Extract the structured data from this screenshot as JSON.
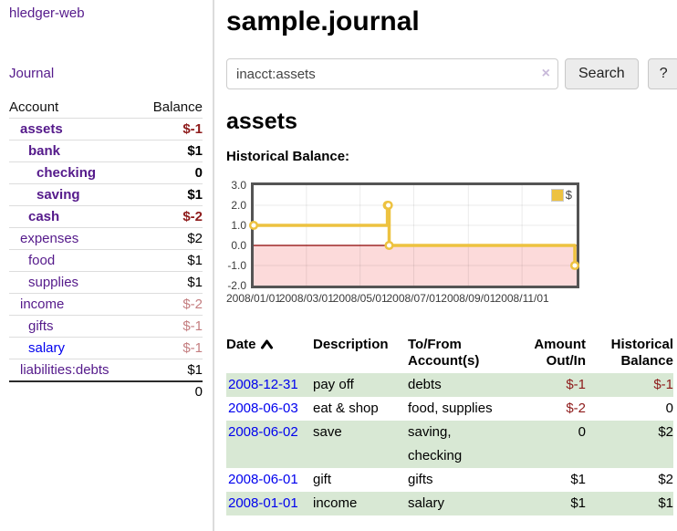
{
  "brand": "hledger-web",
  "nav": {
    "journal": "Journal"
  },
  "sidebar": {
    "col_account": "Account",
    "col_balance": "Balance",
    "rows": [
      {
        "label": "assets",
        "balance": "$-1",
        "depth": 1,
        "bold": true,
        "link": "purple",
        "bal": "neg"
      },
      {
        "label": "bank",
        "balance": "$1",
        "depth": 2,
        "bold": true,
        "link": "purple",
        "bal": "pos"
      },
      {
        "label": "checking",
        "balance": "0",
        "depth": 3,
        "bold": true,
        "link": "purple",
        "bal": "pos"
      },
      {
        "label": "saving",
        "balance": "$1",
        "depth": 3,
        "bold": true,
        "link": "purple",
        "bal": "pos"
      },
      {
        "label": "cash",
        "balance": "$-2",
        "depth": 2,
        "bold": true,
        "link": "purple",
        "bal": "neg"
      },
      {
        "label": "expenses",
        "balance": "$2",
        "depth": 1,
        "bold": false,
        "link": "purple",
        "bal": "pos"
      },
      {
        "label": "food",
        "balance": "$1",
        "depth": 2,
        "bold": false,
        "link": "purple",
        "bal": "pos"
      },
      {
        "label": "supplies",
        "balance": "$1",
        "depth": 2,
        "bold": false,
        "link": "purple",
        "bal": "pos"
      },
      {
        "label": "income",
        "balance": "$-2",
        "depth": 1,
        "bold": false,
        "link": "purple",
        "bal": "dim-neg"
      },
      {
        "label": "gifts",
        "balance": "$-1",
        "depth": 2,
        "bold": false,
        "link": "purple",
        "bal": "dim-neg"
      },
      {
        "label": "salary",
        "balance": "$-1",
        "depth": 2,
        "bold": false,
        "link": "blue",
        "bal": "dim-neg"
      },
      {
        "label": "liabilities:debts",
        "balance": "$1",
        "depth": 1,
        "bold": false,
        "link": "purple",
        "bal": "pos"
      }
    ],
    "total": "0"
  },
  "header": {
    "title": "sample.journal"
  },
  "search": {
    "value": "inacct:assets",
    "clear_icon": "×",
    "search_label": "Search",
    "help_label": "?"
  },
  "account_page": {
    "title": "assets",
    "chart_title": "Historical Balance:"
  },
  "chart_data": {
    "type": "line",
    "steps": true,
    "title": "Historical Balance:",
    "series": [
      {
        "name": "$",
        "color": "#edc240",
        "points": [
          [
            "2008-01-01",
            1
          ],
          [
            "2008-06-01",
            2
          ],
          [
            "2008-06-02",
            2
          ],
          [
            "2008-06-03",
            0
          ],
          [
            "2008-12-31",
            -1
          ]
        ]
      }
    ],
    "x_start": "2008-01-01",
    "x_end": "2008-12-31",
    "xticks": [
      {
        "label": "2008/01/01",
        "date": "2008-01-01"
      },
      {
        "label": "2008/03/01",
        "date": "2008-03-01"
      },
      {
        "label": "2008/05/01",
        "date": "2008-05-01"
      },
      {
        "label": "2008/07/01",
        "date": "2008-07-01"
      },
      {
        "label": "2008/09/01",
        "date": "2008-09-01"
      },
      {
        "label": "2008/11/01",
        "date": "2008-11-01"
      }
    ],
    "yticks": [
      "3.0",
      "2.0",
      "1.0",
      "0.0",
      "-1.0",
      "-2.0"
    ],
    "ylim": [
      -2,
      3
    ],
    "legend": {
      "label": "$",
      "swatch_color": "#edc240",
      "position": "top-right"
    },
    "grid": true,
    "zero_line_color": "#8b0000",
    "negative_region_color": "#fcdada",
    "marker_fill": "#ffffff"
  },
  "transactions": {
    "headers": {
      "date": "Date",
      "description": "Description",
      "accounts": "To/From Account(s)",
      "amount": "Amount Out/In",
      "balance": "Historical Balance"
    },
    "rows": [
      {
        "date": "2008-12-31",
        "description": "pay off",
        "accounts": "debts",
        "amount": "$-1",
        "amount_neg": true,
        "balance": "$-1",
        "balance_neg": true,
        "shaded": true
      },
      {
        "date": "2008-06-03",
        "description": "eat & shop",
        "accounts": "food, supplies",
        "amount": "$-2",
        "amount_neg": true,
        "balance": "0",
        "balance_neg": false,
        "shaded": false
      },
      {
        "date": "2008-06-02",
        "description": "save",
        "accounts": "saving, checking",
        "amount": "0",
        "amount_neg": false,
        "balance": "$2",
        "balance_neg": false,
        "shaded": true
      },
      {
        "date": "2008-06-01",
        "description": "gift",
        "accounts": "gifts",
        "amount": "$1",
        "amount_neg": false,
        "balance": "$2",
        "balance_neg": false,
        "shaded": false
      },
      {
        "date": "2008-01-01",
        "description": "income",
        "accounts": "salary",
        "amount": "$1",
        "amount_neg": false,
        "balance": "$1",
        "balance_neg": false,
        "shaded": true
      }
    ]
  }
}
